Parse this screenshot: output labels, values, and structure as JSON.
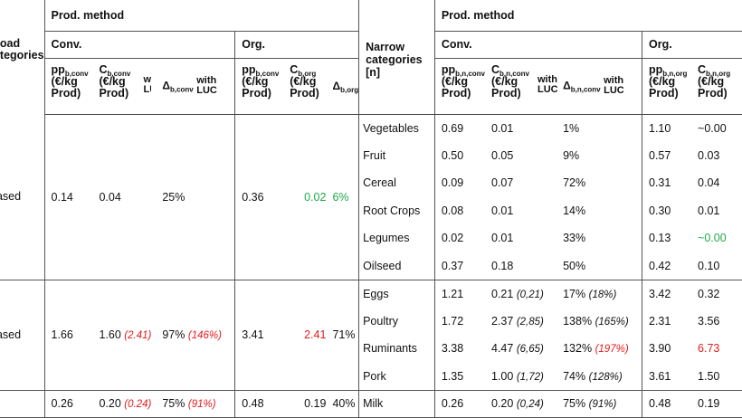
{
  "header": {
    "broad_categories_label": "Broad categories",
    "prod_method_left": "Prod. method",
    "prod_method_right": "Prod. method",
    "conv": "Conv.",
    "org": "Org.",
    "conv_right": "Conv.",
    "org_right": "Org.",
    "narrow_label_line1": "Narrow",
    "narrow_label_line2": "categories",
    "narrow_label_line3": "[n]",
    "pp": "pp",
    "c": "C",
    "delta": "Δ",
    "sub_b_conv": "b,conv",
    "sub_b_org": "b,org",
    "sub_bn_conv": "b,n,conv",
    "sub_bn_org": "b,n,org",
    "unit_line1": "(€/kg",
    "unit_line2": "Prod)",
    "with": "with",
    "luc": "LUC"
  },
  "groups": [
    {
      "broad": "based",
      "pp_conv": "0.14",
      "c_conv": "0.04",
      "c_conv_luc": "",
      "delta_conv": "25%",
      "delta_conv_luc": "",
      "pp_org": "0.36",
      "c_org": "0.02",
      "c_org_color": "#1fa84a",
      "delta_org": "6%",
      "delta_org_color": "#1fa84a",
      "rows": [
        {
          "narrow": "Vegetables",
          "pp_conv": "0.69",
          "c_conv": "0.01",
          "c_conv_luc": "",
          "delta": "1%",
          "delta_luc": "",
          "pp_org": "1.10",
          "c_org": "~0.00",
          "c_org_color": ""
        },
        {
          "narrow": "Fruit",
          "pp_conv": "0.50",
          "c_conv": "0.05",
          "c_conv_luc": "",
          "delta": "9%",
          "delta_luc": "",
          "pp_org": "0.57",
          "c_org": "0.03",
          "c_org_color": ""
        },
        {
          "narrow": "Cereal",
          "pp_conv": "0.09",
          "c_conv": "0.07",
          "c_conv_luc": "",
          "delta": "72%",
          "delta_luc": "",
          "pp_org": "0.31",
          "c_org": "0.04",
          "c_org_color": ""
        },
        {
          "narrow": "Root Crops",
          "pp_conv": "0.08",
          "c_conv": "0.01",
          "c_conv_luc": "",
          "delta": "14%",
          "delta_luc": "",
          "pp_org": "0.30",
          "c_org": "0.01",
          "c_org_color": ""
        },
        {
          "narrow": "Legumes",
          "pp_conv": "0.02",
          "c_conv": "0.01",
          "c_conv_luc": "",
          "delta": "33%",
          "delta_luc": "",
          "pp_org": "0.13",
          "c_org": "~0.00",
          "c_org_color": "#1fa84a"
        },
        {
          "narrow": "Oilseed",
          "pp_conv": "0.37",
          "c_conv": "0.18",
          "c_conv_luc": "",
          "delta": "50%",
          "delta_luc": "",
          "pp_org": "0.42",
          "c_org": "0.10",
          "c_org_color": ""
        }
      ]
    },
    {
      "broad": "based",
      "pp_conv": "1.66",
      "c_conv": "1.60",
      "c_conv_luc": "(2.41)",
      "delta_conv": "97%",
      "delta_conv_luc": "(146%)",
      "pp_org": "3.41",
      "c_org": "2.41",
      "c_org_color": "#e31b1b",
      "delta_org": "71%",
      "delta_org_color": "",
      "rows": [
        {
          "narrow": "Eggs",
          "pp_conv": "1.21",
          "c_conv": "0.21",
          "c_conv_luc": "(0,21)",
          "delta": "17%",
          "delta_luc": "(18%)",
          "pp_org": "3.42",
          "c_org": "0.32",
          "c_org_color": ""
        },
        {
          "narrow": "Poultry",
          "pp_conv": "1.72",
          "c_conv": "2.37",
          "c_conv_luc": "(2,85)",
          "delta": "138%",
          "delta_luc": "(165%)",
          "pp_org": "2.31",
          "c_org": "3.56",
          "c_org_color": ""
        },
        {
          "narrow": "Ruminants",
          "pp_conv": "3.38",
          "c_conv": "4.47",
          "c_conv_luc": "(6,65)",
          "delta": "132%",
          "delta_luc": "(197%)",
          "delta_luc_red": true,
          "pp_org": "3.90",
          "c_org": "6.73",
          "c_org_color": "#e31b1b"
        },
        {
          "narrow": "Pork",
          "pp_conv": "1.35",
          "c_conv": "1.00",
          "c_conv_luc": "(1,72)",
          "delta": "74%",
          "delta_luc": "(128%)",
          "pp_org": "3.61",
          "c_org": "1.50",
          "c_org_color": ""
        }
      ]
    },
    {
      "broad": "",
      "pp_conv": "0.26",
      "c_conv": "0.20",
      "c_conv_luc": "(0.24)",
      "delta_conv": "75%",
      "delta_conv_luc": "(91%)",
      "pp_org": "0.48",
      "c_org": "0.19",
      "c_org_color": "",
      "delta_org": "40%",
      "delta_org_color": "",
      "rows": [
        {
          "narrow": "Milk",
          "pp_conv": "0.26",
          "c_conv": "0.20",
          "c_conv_luc": "(0,24)",
          "delta": "75%",
          "delta_luc": "(91%)",
          "pp_org": "0.48",
          "c_org": "0.19",
          "c_org_color": ""
        }
      ]
    }
  ]
}
